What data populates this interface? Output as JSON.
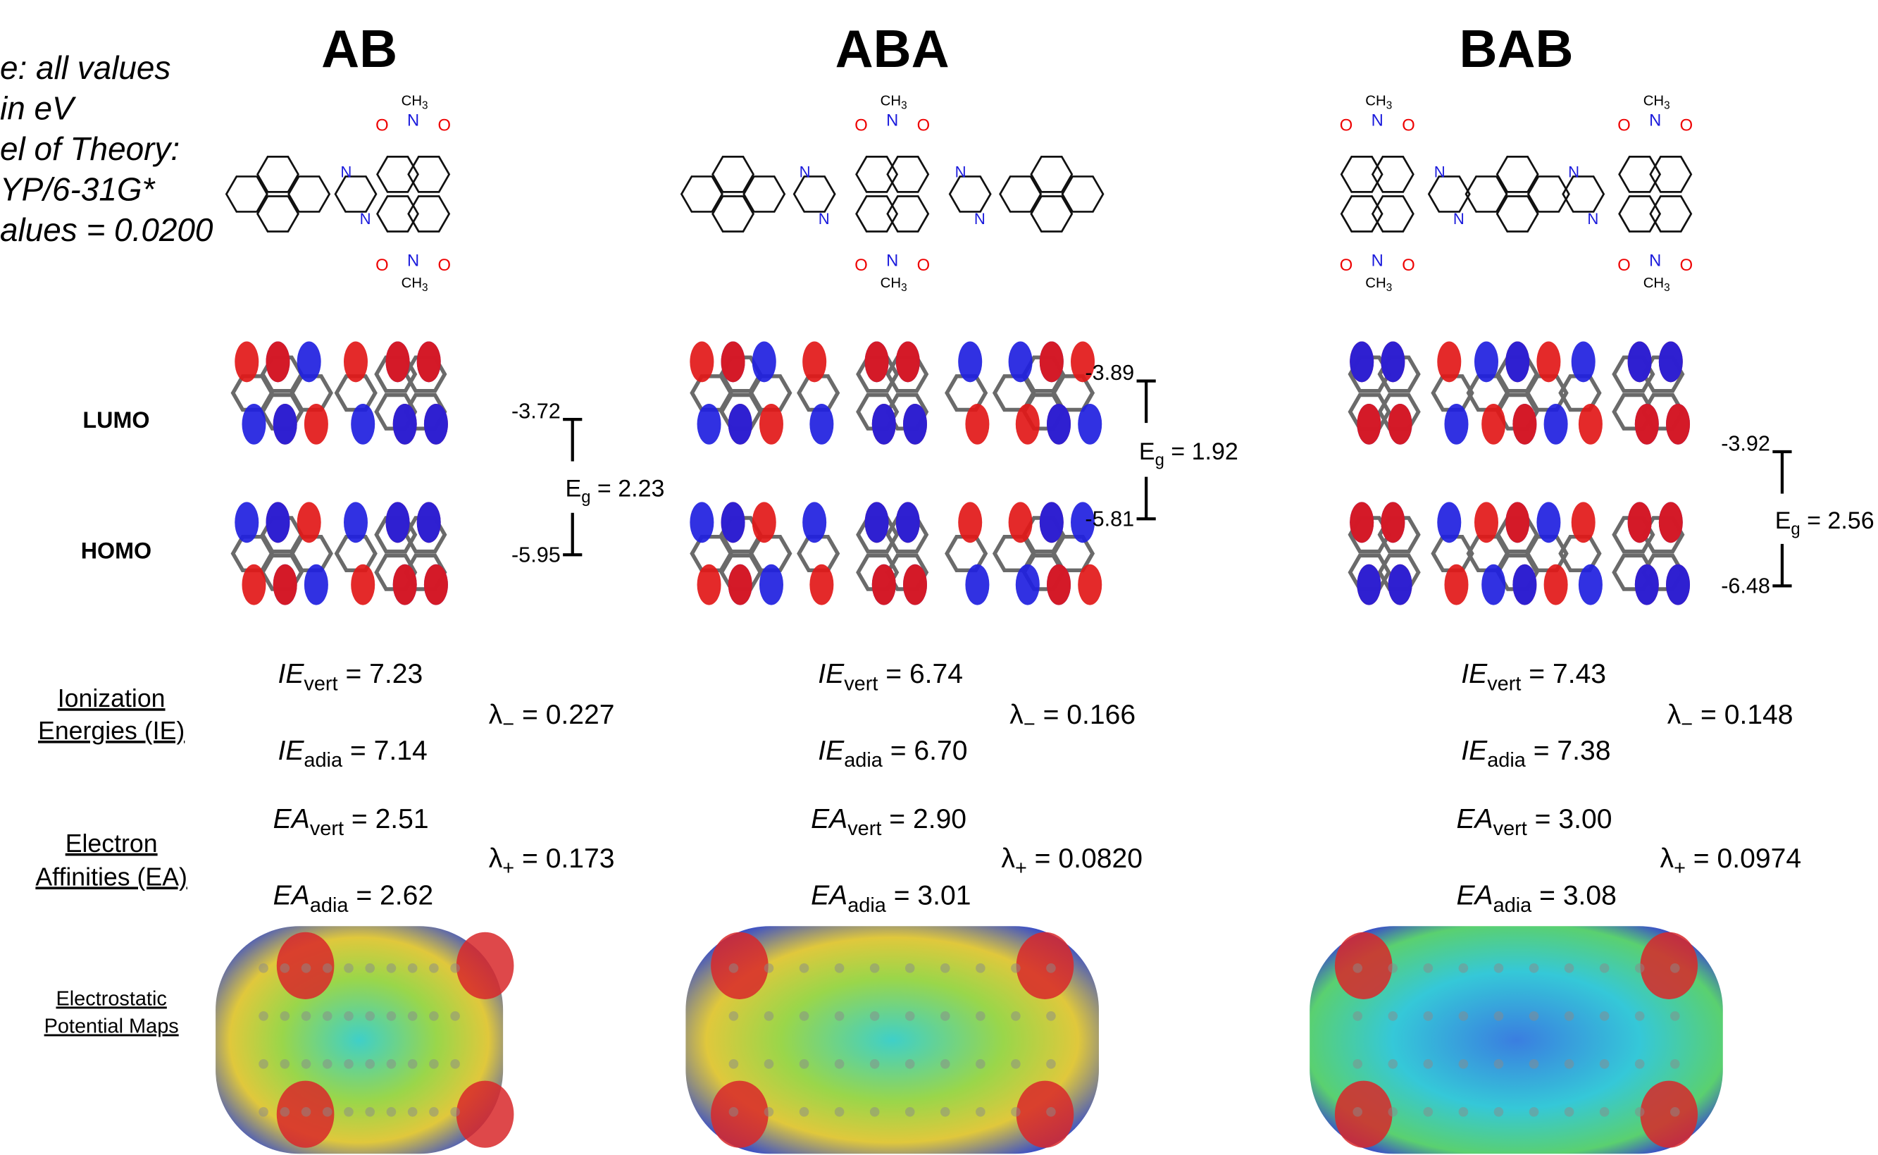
{
  "note": [
    "e: all values",
    "in eV",
    "el of Theory:",
    "YP/6-31G*",
    "alues = 0.0200"
  ],
  "row_labels": {
    "lumo": "LUMO",
    "homo": "HOMO",
    "ie": [
      "Ionization",
      "Energies (IE)"
    ],
    "ea": [
      "Electron",
      "Affinities (EA)"
    ],
    "esp": [
      "Electrostatic",
      "Potential Maps"
    ]
  },
  "symbols": {
    "ie": "IE",
    "ea": "EA",
    "vert": "vert",
    "adia": "adia",
    "eq": " = ",
    "e": "E",
    "g": "g",
    "lambda": "λ",
    "minus": "−",
    "plus": "+"
  },
  "atoms": {
    "n": "N",
    "o": "O",
    "ch": "CH",
    "three": "3"
  },
  "columns": [
    {
      "title": "AB",
      "lumo": "-3.72",
      "homo": "-5.95",
      "eg": "2.23",
      "ie_vert": "7.23",
      "ie_adia": "7.14",
      "lambda_minus": "0.227",
      "ea_vert": "2.51",
      "ea_adia": "2.62",
      "lambda_plus": "0.173"
    },
    {
      "title": "ABA",
      "lumo": "-3.89",
      "homo": "-5.81",
      "eg": "1.92",
      "ie_vert": "6.74",
      "ie_adia": "6.70",
      "lambda_minus": "0.166",
      "ea_vert": "2.90",
      "ea_adia": "3.01",
      "lambda_plus": "0.0820"
    },
    {
      "title": "BAB",
      "lumo": "-3.92",
      "homo": "-6.48",
      "eg": "2.56",
      "ie_vert": "7.43",
      "ie_adia": "7.38",
      "lambda_minus": "0.148",
      "ea_vert": "3.00",
      "ea_adia": "3.08",
      "lambda_plus": "0.0974"
    }
  ]
}
